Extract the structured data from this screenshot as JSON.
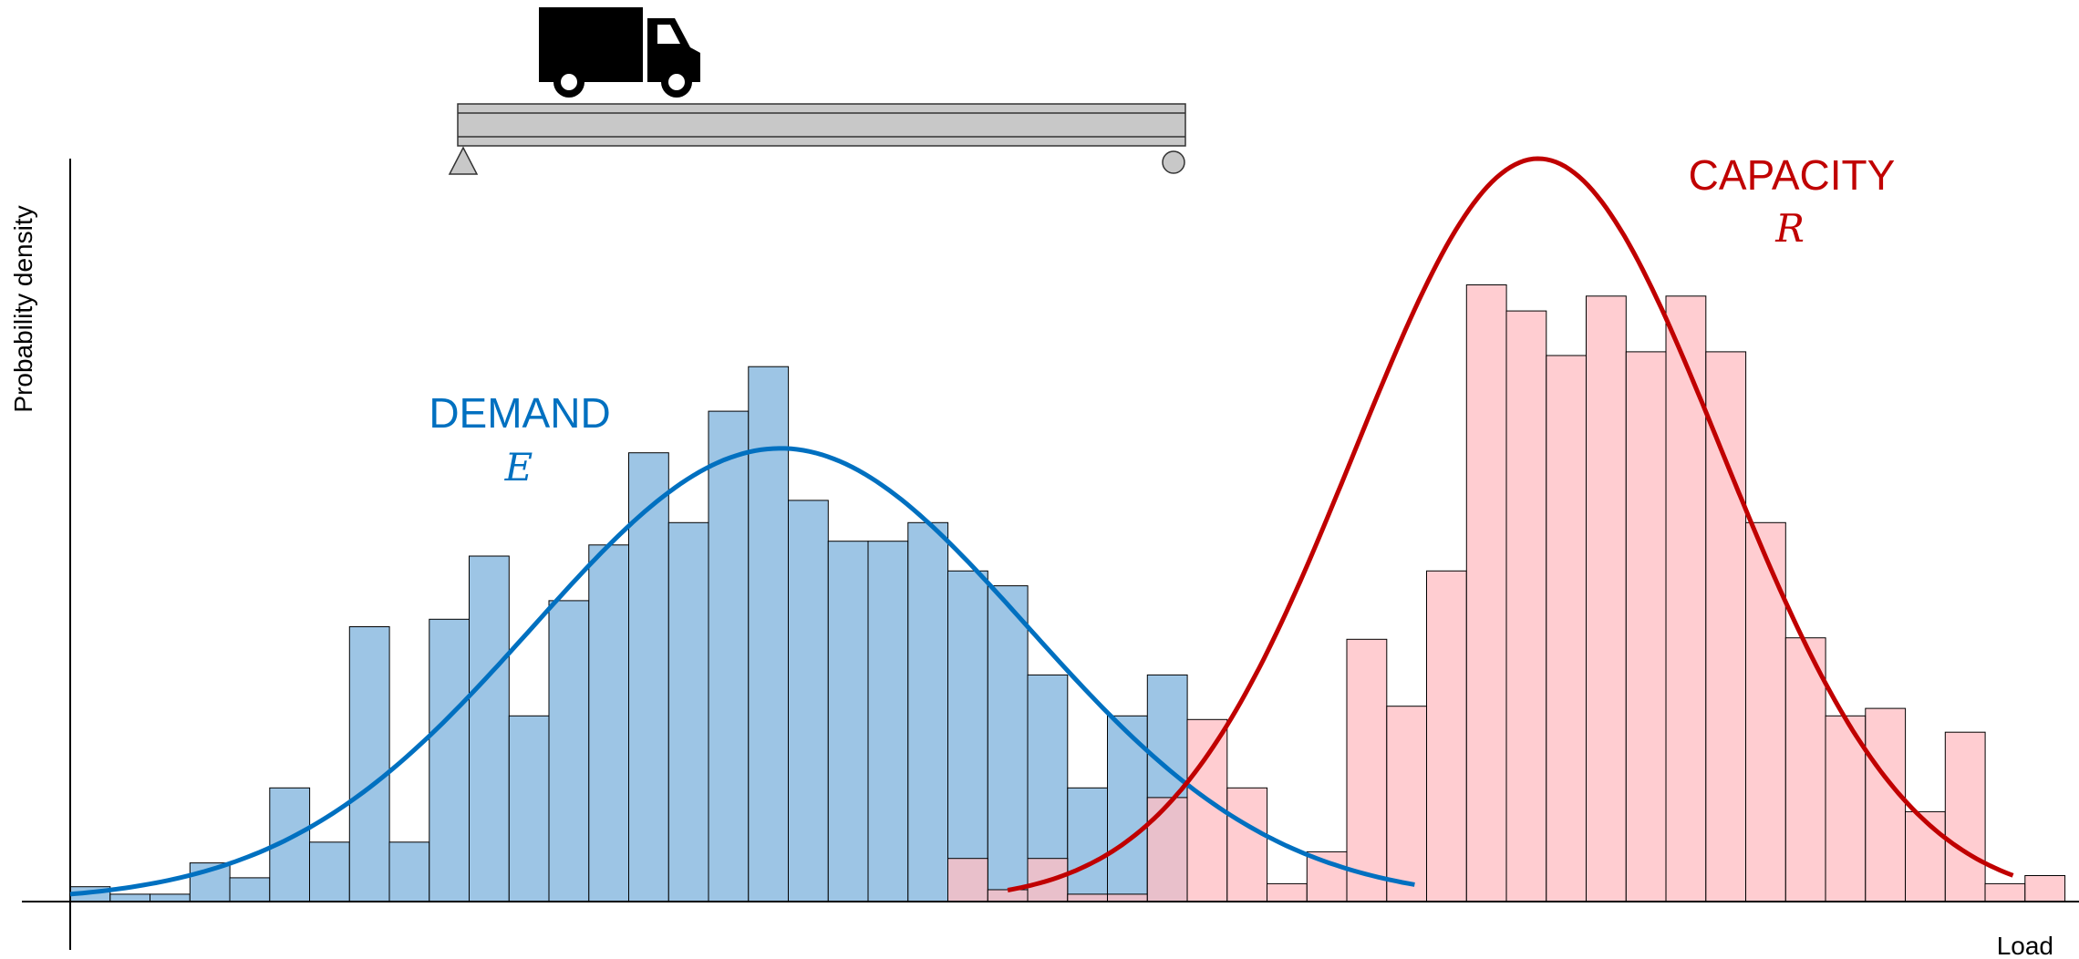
{
  "chart_data": {
    "type": "histogram",
    "ylabel": "Probability density",
    "xlabel": "Load",
    "grid": false,
    "x_range": [
      0,
      50
    ],
    "bins_start": 0,
    "bin_width": 1,
    "series": [
      {
        "name": "DEMAND",
        "symbol": "E",
        "color": "#0070C0",
        "fill": "#9DC5E5",
        "histogram_heights": [
          2.0,
          1.0,
          1.0,
          5.2,
          3.2,
          15.3,
          8.0,
          37.0,
          8.0,
          38.0,
          46.5,
          25.0,
          40.5,
          48.0,
          60.4,
          51.0,
          66.0,
          72.0,
          54.0,
          48.5,
          48.5,
          51.0,
          44.5,
          42.5,
          30.5,
          15.3,
          25.0,
          30.5
        ],
        "fit_curve": {
          "distribution": "normal",
          "mean": 17.8,
          "peak_density": 61.0,
          "std": 6.2,
          "curve_x_range": [
            0,
            33.7
          ]
        }
      },
      {
        "name": "CAPACITY",
        "symbol": "R",
        "color": "#C00000",
        "fill": "#FFBFC4",
        "histogram_heights": [
          5.8,
          1.6,
          5.8,
          1.0,
          1.0,
          14.0,
          24.5,
          15.3,
          2.4,
          6.7,
          35.3,
          26.3,
          44.5,
          83.0,
          79.5,
          73.5,
          81.5,
          74.0,
          81.5,
          74.0,
          51.0,
          35.5,
          25.0,
          26.0,
          12.1,
          22.8,
          2.4,
          3.5
        ],
        "hist_bin_start": 22,
        "fit_curve": {
          "distribution": "normal",
          "mean": 36.8,
          "peak_density": 100.0,
          "std": 4.6,
          "curve_x_range": [
            23.5,
            48.7
          ]
        }
      }
    ],
    "ylim": [
      0,
      110
    ]
  },
  "labels": {
    "demand_title": "DEMAND",
    "demand_symbol": "E",
    "capacity_title": "CAPACITY",
    "capacity_symbol": "R"
  },
  "illustration": {
    "icons": [
      "truck-icon",
      "beam-icon",
      "pin-support-icon",
      "roller-support-icon"
    ],
    "beam_fill": "#C8C8C8",
    "overlap_fill": "#B9A7B5"
  }
}
